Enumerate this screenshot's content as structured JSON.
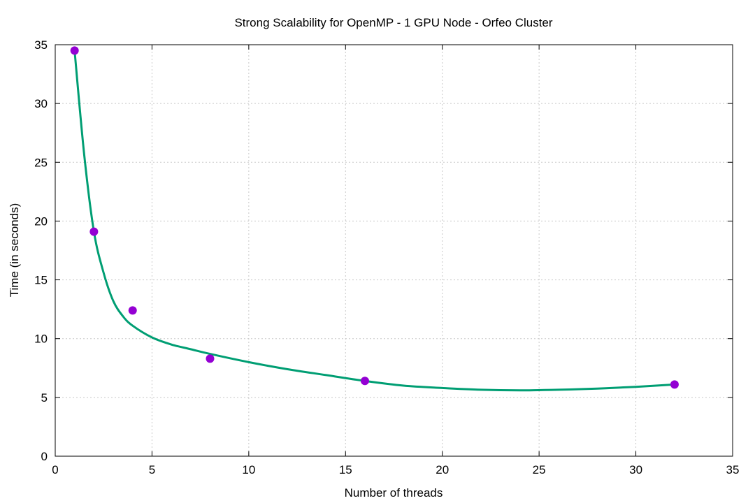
{
  "colors": {
    "fit_line": "#009e73",
    "points": "#9400d3",
    "grid": "#c8c8c8",
    "frame": "#000000"
  },
  "chart_data": {
    "type": "scatter",
    "title": "Strong Scalability for OpenMP - 1 GPU Node - Orfeo Cluster",
    "xlabel": "Number of threads",
    "ylabel": "Time (in seconds)",
    "xlim": [
      0,
      35
    ],
    "ylim": [
      0,
      35
    ],
    "xticks": [
      0,
      5,
      10,
      15,
      20,
      25,
      30,
      35
    ],
    "yticks": [
      0,
      5,
      10,
      15,
      20,
      25,
      30,
      35
    ],
    "grid": true,
    "legend": "none",
    "series": [
      {
        "kind": "points",
        "x": [
          1,
          2,
          4,
          8,
          16,
          32
        ],
        "y": [
          34.5,
          19.1,
          12.4,
          8.3,
          6.4,
          6.1
        ]
      },
      {
        "kind": "fit-line",
        "x": [
          1,
          1.5,
          2,
          2.5,
          3,
          3.5,
          4,
          5,
          6,
          7,
          8,
          10,
          12,
          14,
          16,
          18,
          20,
          22,
          24,
          26,
          28,
          30,
          32
        ],
        "y": [
          34.5,
          25.6,
          19.1,
          15.6,
          13.2,
          11.9,
          11.1,
          10.1,
          9.5,
          9.1,
          8.7,
          8.0,
          7.4,
          6.9,
          6.4,
          6.0,
          5.8,
          5.65,
          5.6,
          5.65,
          5.75,
          5.9,
          6.1
        ]
      }
    ]
  }
}
